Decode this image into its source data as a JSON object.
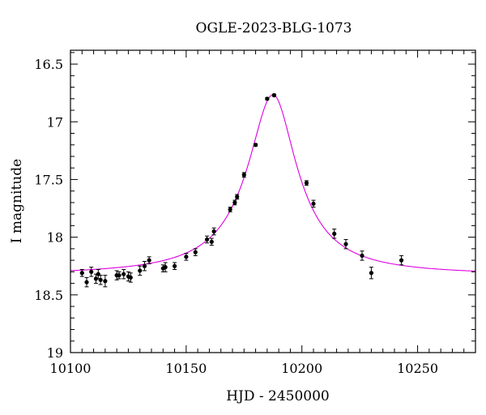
{
  "chart_data": {
    "type": "scatter",
    "title": "OGLE-2023-BLG-1073",
    "xlabel": "HJD - 2450000",
    "ylabel": "I magnitude",
    "xlim": [
      10100,
      10275
    ],
    "ylim": [
      19,
      16.38
    ],
    "y_inverted": true,
    "xticks": [
      10100,
      10150,
      10200,
      10250
    ],
    "xtick_labels": [
      "10100",
      "10150",
      "10200",
      "10250"
    ],
    "yticks": [
      16.5,
      17,
      17.5,
      18,
      18.5,
      19
    ],
    "ytick_labels": [
      "16.5",
      "17",
      "17.5",
      "18",
      "18.5",
      "19"
    ],
    "grid": false,
    "legend": "none",
    "series": [
      {
        "kind": "data-with-errors",
        "color": "#000000",
        "points": [
          {
            "x": 10105,
            "y": 18.31,
            "err": 0.03
          },
          {
            "x": 10107,
            "y": 18.39,
            "err": 0.04
          },
          {
            "x": 10109,
            "y": 18.3,
            "err": 0.04
          },
          {
            "x": 10111,
            "y": 18.36,
            "err": 0.04
          },
          {
            "x": 10112,
            "y": 18.32,
            "err": 0.04
          },
          {
            "x": 10113,
            "y": 18.37,
            "err": 0.04
          },
          {
            "x": 10115,
            "y": 18.38,
            "err": 0.05
          },
          {
            "x": 10120,
            "y": 18.33,
            "err": 0.04
          },
          {
            "x": 10121,
            "y": 18.33,
            "err": 0.03
          },
          {
            "x": 10123,
            "y": 18.32,
            "err": 0.04
          },
          {
            "x": 10125,
            "y": 18.34,
            "err": 0.04
          },
          {
            "x": 10126,
            "y": 18.35,
            "err": 0.04
          },
          {
            "x": 10130,
            "y": 18.29,
            "err": 0.04
          },
          {
            "x": 10132,
            "y": 18.25,
            "err": 0.04
          },
          {
            "x": 10134,
            "y": 18.2,
            "err": 0.03
          },
          {
            "x": 10140,
            "y": 18.27,
            "err": 0.03
          },
          {
            "x": 10141,
            "y": 18.26,
            "err": 0.04
          },
          {
            "x": 10145,
            "y": 18.25,
            "err": 0.03
          },
          {
            "x": 10150,
            "y": 18.17,
            "err": 0.03
          },
          {
            "x": 10154,
            "y": 18.13,
            "err": 0.03
          },
          {
            "x": 10159,
            "y": 18.02,
            "err": 0.03
          },
          {
            "x": 10161,
            "y": 18.04,
            "err": 0.03
          },
          {
            "x": 10162,
            "y": 17.95,
            "err": 0.03
          },
          {
            "x": 10169,
            "y": 17.76,
            "err": 0.02
          },
          {
            "x": 10171,
            "y": 17.7,
            "err": 0.02
          },
          {
            "x": 10172,
            "y": 17.65,
            "err": 0.02
          },
          {
            "x": 10175,
            "y": 17.46,
            "err": 0.02
          },
          {
            "x": 10180,
            "y": 17.2,
            "err": 0.01
          },
          {
            "x": 10185,
            "y": 16.8,
            "err": 0.01
          },
          {
            "x": 10188,
            "y": 16.77,
            "err": 0.01
          },
          {
            "x": 10202,
            "y": 17.53,
            "err": 0.02
          },
          {
            "x": 10205,
            "y": 17.71,
            "err": 0.03
          },
          {
            "x": 10214,
            "y": 17.97,
            "err": 0.04
          },
          {
            "x": 10219,
            "y": 18.06,
            "err": 0.04
          },
          {
            "x": 10226,
            "y": 18.16,
            "err": 0.04
          },
          {
            "x": 10230,
            "y": 18.31,
            "err": 0.05
          },
          {
            "x": 10243,
            "y": 18.2,
            "err": 0.04
          }
        ]
      },
      {
        "kind": "model",
        "color": "#e000e0",
        "t0": 10187.5,
        "baseline_mag": 18.33,
        "peak_mag": 16.765,
        "width_left": 9.5,
        "width_right": 9
      }
    ]
  }
}
